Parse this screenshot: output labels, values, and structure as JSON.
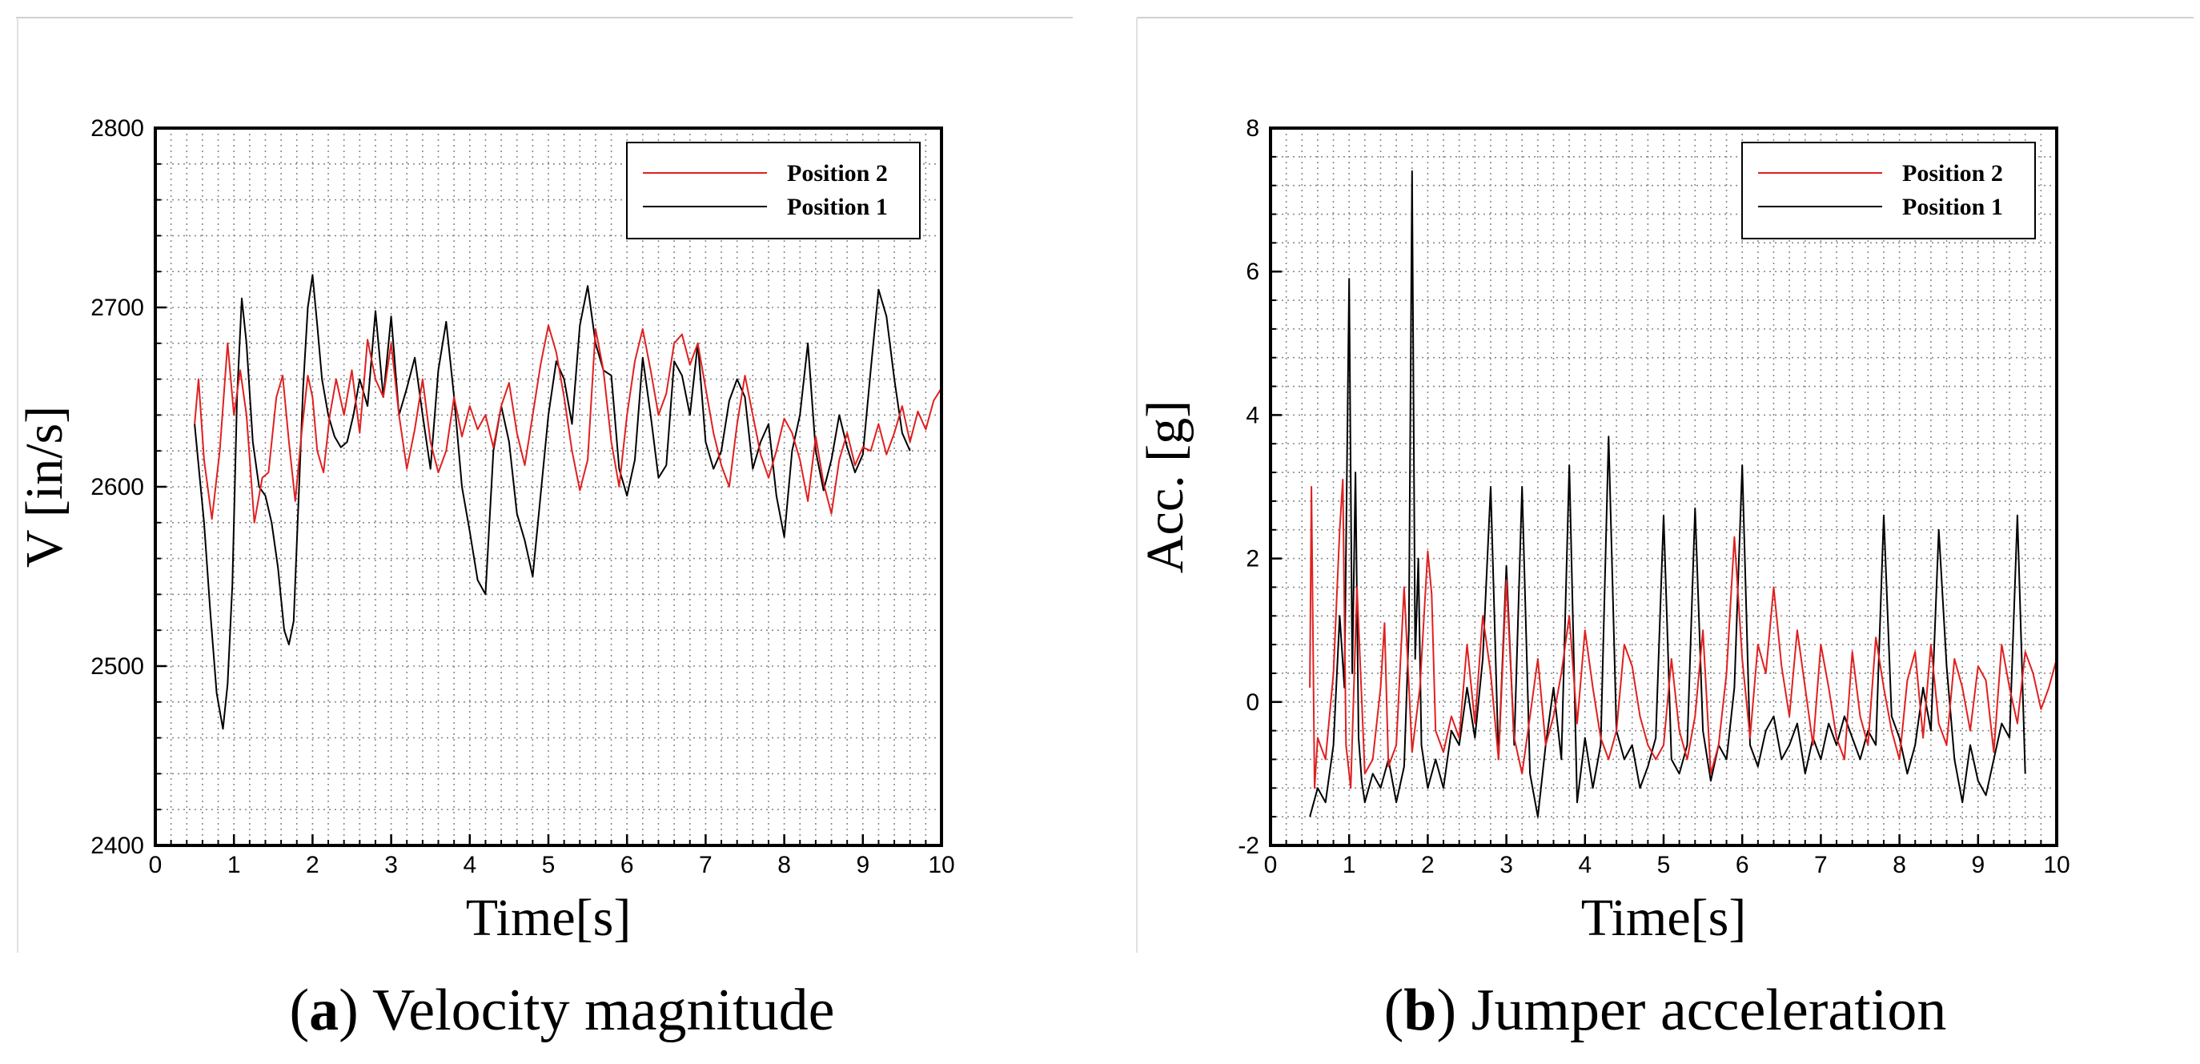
{
  "chart_data": [
    {
      "type": "line",
      "caption_letter": "a",
      "caption_text": "Velocity magnitude",
      "xlabel": "Time[s]",
      "ylabel": "V [in/s]",
      "xlim": [
        0,
        10
      ],
      "ylim": [
        2400,
        2800
      ],
      "xticks": [
        0,
        1,
        2,
        3,
        4,
        5,
        6,
        7,
        8,
        9,
        10
      ],
      "yticks": [
        2400,
        2500,
        2600,
        2700,
        2800
      ],
      "grid": true,
      "legend_position": "top-right",
      "series": [
        {
          "name": "Position 2",
          "color": "#e02020",
          "x": [
            0.5,
            0.55,
            0.62,
            0.72,
            0.82,
            0.92,
            1.0,
            1.08,
            1.16,
            1.26,
            1.36,
            1.44,
            1.54,
            1.62,
            1.7,
            1.78,
            1.86,
            1.94,
            2.0,
            2.06,
            2.14,
            2.22,
            2.3,
            2.4,
            2.5,
            2.6,
            2.7,
            2.8,
            2.9,
            3.0,
            3.1,
            3.2,
            3.3,
            3.4,
            3.5,
            3.6,
            3.7,
            3.8,
            3.9,
            4.0,
            4.1,
            4.2,
            4.3,
            4.4,
            4.5,
            4.6,
            4.7,
            4.8,
            4.9,
            5.0,
            5.1,
            5.2,
            5.3,
            5.4,
            5.5,
            5.6,
            5.7,
            5.8,
            5.9,
            6.0,
            6.1,
            6.2,
            6.3,
            6.4,
            6.5,
            6.6,
            6.7,
            6.8,
            6.9,
            7.0,
            7.1,
            7.2,
            7.3,
            7.4,
            7.5,
            7.6,
            7.7,
            7.8,
            7.9,
            8.0,
            8.1,
            8.2,
            8.3,
            8.4,
            8.5,
            8.6,
            8.7,
            8.8,
            8.9,
            9.0,
            9.1,
            9.2,
            9.3,
            9.4,
            9.5,
            9.6,
            9.7,
            9.8,
            9.9,
            10.0
          ],
          "values": [
            2635,
            2660,
            2615,
            2582,
            2620,
            2680,
            2640,
            2665,
            2640,
            2580,
            2605,
            2608,
            2650,
            2662,
            2625,
            2592,
            2630,
            2662,
            2650,
            2620,
            2608,
            2640,
            2660,
            2640,
            2665,
            2630,
            2682,
            2660,
            2650,
            2680,
            2640,
            2610,
            2632,
            2660,
            2625,
            2608,
            2620,
            2650,
            2628,
            2645,
            2632,
            2640,
            2622,
            2645,
            2658,
            2630,
            2612,
            2640,
            2668,
            2690,
            2675,
            2650,
            2620,
            2598,
            2615,
            2688,
            2665,
            2625,
            2600,
            2640,
            2670,
            2688,
            2665,
            2640,
            2652,
            2680,
            2685,
            2668,
            2680,
            2655,
            2630,
            2612,
            2600,
            2635,
            2662,
            2640,
            2618,
            2605,
            2620,
            2638,
            2630,
            2615,
            2592,
            2628,
            2602,
            2585,
            2615,
            2630,
            2612,
            2622,
            2620,
            2635,
            2618,
            2630,
            2645,
            2625,
            2642,
            2632,
            2648,
            2655
          ]
        },
        {
          "name": "Position 1",
          "color": "#000000",
          "x": [
            0.5,
            0.55,
            0.62,
            0.7,
            0.78,
            0.86,
            0.92,
            0.98,
            1.04,
            1.1,
            1.16,
            1.24,
            1.32,
            1.4,
            1.48,
            1.56,
            1.64,
            1.7,
            1.76,
            1.82,
            1.88,
            1.94,
            2.0,
            2.06,
            2.12,
            2.2,
            2.28,
            2.36,
            2.44,
            2.52,
            2.6,
            2.7,
            2.8,
            2.9,
            3.0,
            3.1,
            3.2,
            3.3,
            3.4,
            3.5,
            3.6,
            3.7,
            3.8,
            3.9,
            4.0,
            4.1,
            4.2,
            4.3,
            4.4,
            4.5,
            4.6,
            4.7,
            4.8,
            4.9,
            5.0,
            5.1,
            5.2,
            5.3,
            5.4,
            5.5,
            5.6,
            5.7,
            5.8,
            5.9,
            6.0,
            6.1,
            6.2,
            6.3,
            6.4,
            6.5,
            6.6,
            6.7,
            6.8,
            6.9,
            7.0,
            7.1,
            7.2,
            7.3,
            7.4,
            7.5,
            7.6,
            7.7,
            7.8,
            7.9,
            8.0,
            8.1,
            8.2,
            8.3,
            8.4,
            8.5,
            8.6,
            8.7,
            8.8,
            8.9,
            9.0,
            9.1,
            9.2,
            9.3,
            9.4,
            9.5,
            9.6
          ],
          "values": [
            2635,
            2612,
            2580,
            2530,
            2485,
            2465,
            2490,
            2545,
            2650,
            2705,
            2680,
            2625,
            2600,
            2595,
            2580,
            2555,
            2520,
            2512,
            2525,
            2590,
            2655,
            2700,
            2718,
            2690,
            2660,
            2640,
            2628,
            2622,
            2625,
            2640,
            2660,
            2645,
            2698,
            2650,
            2695,
            2640,
            2655,
            2672,
            2640,
            2610,
            2665,
            2692,
            2650,
            2600,
            2575,
            2548,
            2540,
            2620,
            2645,
            2625,
            2585,
            2570,
            2550,
            2595,
            2640,
            2670,
            2660,
            2635,
            2690,
            2712,
            2680,
            2665,
            2662,
            2610,
            2595,
            2615,
            2672,
            2640,
            2605,
            2612,
            2670,
            2662,
            2640,
            2680,
            2625,
            2610,
            2620,
            2648,
            2660,
            2650,
            2610,
            2625,
            2635,
            2595,
            2572,
            2620,
            2640,
            2680,
            2620,
            2598,
            2615,
            2640,
            2622,
            2608,
            2618,
            2665,
            2710,
            2695,
            2660,
            2630,
            2620
          ]
        }
      ]
    },
    {
      "type": "line",
      "caption_letter": "b",
      "caption_text": "Jumper acceleration",
      "xlabel": "Time[s]",
      "ylabel": "Acc. [g]",
      "xlim": [
        0,
        10
      ],
      "ylim": [
        -2,
        8
      ],
      "xticks": [
        0,
        1,
        2,
        3,
        4,
        5,
        6,
        7,
        8,
        9,
        10
      ],
      "yticks": [
        -2,
        0,
        2,
        4,
        6,
        8
      ],
      "grid": true,
      "legend_position": "top-right",
      "series": [
        {
          "name": "Position 2",
          "color": "#e02020",
          "x": [
            0.5,
            0.52,
            0.56,
            0.6,
            0.7,
            0.8,
            0.88,
            0.92,
            0.96,
            1.02,
            1.1,
            1.2,
            1.3,
            1.4,
            1.45,
            1.5,
            1.6,
            1.7,
            1.8,
            1.9,
            2.0,
            2.05,
            2.1,
            2.2,
            2.3,
            2.4,
            2.5,
            2.6,
            2.7,
            2.8,
            2.9,
            3.0,
            3.1,
            3.2,
            3.3,
            3.4,
            3.5,
            3.6,
            3.7,
            3.8,
            3.9,
            4.0,
            4.1,
            4.2,
            4.3,
            4.4,
            4.5,
            4.6,
            4.7,
            4.8,
            4.9,
            5.0,
            5.1,
            5.2,
            5.3,
            5.4,
            5.5,
            5.6,
            5.7,
            5.8,
            5.9,
            6.0,
            6.1,
            6.2,
            6.3,
            6.4,
            6.5,
            6.6,
            6.7,
            6.8,
            6.9,
            7.0,
            7.1,
            7.2,
            7.3,
            7.4,
            7.5,
            7.6,
            7.7,
            7.8,
            7.9,
            8.0,
            8.1,
            8.2,
            8.3,
            8.4,
            8.5,
            8.6,
            8.7,
            8.8,
            8.9,
            9.0,
            9.1,
            9.2,
            9.3,
            9.4,
            9.5,
            9.6,
            9.7,
            9.8,
            9.9,
            10.0
          ],
          "values": [
            0.2,
            3.0,
            -1.2,
            -0.5,
            -0.8,
            0.4,
            2.4,
            3.1,
            -0.6,
            -1.2,
            1.6,
            -1.0,
            -0.8,
            0.2,
            1.1,
            -0.9,
            -0.6,
            1.6,
            -0.7,
            0.2,
            2.1,
            1.5,
            -0.4,
            -0.7,
            -0.2,
            -0.5,
            0.8,
            -0.3,
            1.2,
            0.4,
            -0.8,
            1.7,
            -0.5,
            -1.0,
            -0.2,
            0.6,
            -0.6,
            -0.2,
            0.4,
            1.2,
            -0.3,
            1.0,
            0.2,
            -0.5,
            -0.8,
            -0.4,
            0.8,
            0.5,
            -0.2,
            -0.6,
            -0.8,
            -0.6,
            0.6,
            -0.4,
            -0.8,
            -0.2,
            1.0,
            -1.0,
            -0.6,
            0.4,
            2.3,
            0.6,
            -0.5,
            0.8,
            0.4,
            1.6,
            0.5,
            -0.2,
            1.0,
            0.2,
            -0.6,
            0.8,
            0.2,
            -0.5,
            -0.8,
            0.7,
            -0.2,
            -0.6,
            0.9,
            0.2,
            -0.4,
            -0.8,
            0.3,
            0.7,
            -0.5,
            0.8,
            -0.3,
            -0.6,
            0.6,
            0.2,
            -0.4,
            0.5,
            0.3,
            -0.7,
            0.8,
            0.2,
            -0.3,
            0.7,
            0.4,
            -0.1,
            0.2,
            0.6
          ]
        },
        {
          "name": "Position 1",
          "color": "#000000",
          "x": [
            0.5,
            0.6,
            0.7,
            0.8,
            0.88,
            0.94,
            1.0,
            1.04,
            1.08,
            1.12,
            1.16,
            1.2,
            1.3,
            1.4,
            1.5,
            1.6,
            1.7,
            1.76,
            1.8,
            1.84,
            1.88,
            1.92,
            2.0,
            2.1,
            2.2,
            2.3,
            2.4,
            2.5,
            2.6,
            2.7,
            2.8,
            2.9,
            3.0,
            3.1,
            3.2,
            3.3,
            3.4,
            3.5,
            3.6,
            3.7,
            3.8,
            3.9,
            4.0,
            4.1,
            4.2,
            4.3,
            4.4,
            4.5,
            4.6,
            4.7,
            4.8,
            4.9,
            5.0,
            5.1,
            5.2,
            5.3,
            5.4,
            5.5,
            5.6,
            5.7,
            5.8,
            5.9,
            6.0,
            6.1,
            6.2,
            6.3,
            6.4,
            6.5,
            6.6,
            6.7,
            6.8,
            6.9,
            7.0,
            7.1,
            7.2,
            7.3,
            7.4,
            7.5,
            7.6,
            7.7,
            7.8,
            7.9,
            8.0,
            8.1,
            8.2,
            8.3,
            8.4,
            8.5,
            8.6,
            8.7,
            8.8,
            8.9,
            9.0,
            9.1,
            9.2,
            9.3,
            9.4,
            9.5,
            9.6
          ],
          "values": [
            -1.6,
            -1.2,
            -1.4,
            -0.6,
            1.2,
            0.2,
            5.9,
            0.4,
            3.2,
            -0.5,
            -1.1,
            -1.4,
            -1.0,
            -1.2,
            -0.8,
            -1.4,
            -0.9,
            1.0,
            7.4,
            0.6,
            2.0,
            -0.6,
            -1.2,
            -0.8,
            -1.2,
            -0.4,
            -0.6,
            0.2,
            -0.5,
            0.6,
            3.0,
            -0.8,
            1.9,
            -0.6,
            3.0,
            -1.0,
            -1.6,
            -0.6,
            0.2,
            -0.8,
            3.3,
            -1.4,
            -0.5,
            -1.2,
            -0.6,
            3.7,
            -0.4,
            -0.8,
            -0.6,
            -1.2,
            -0.9,
            -0.5,
            2.6,
            -0.8,
            -1.0,
            -0.6,
            2.7,
            -0.4,
            -1.1,
            -0.6,
            -0.8,
            0.2,
            3.3,
            -0.6,
            -0.9,
            -0.4,
            -0.2,
            -0.8,
            -0.6,
            -0.3,
            -1.0,
            -0.5,
            -0.8,
            -0.3,
            -0.6,
            -0.2,
            -0.5,
            -0.8,
            -0.4,
            -0.6,
            2.6,
            -0.2,
            -0.5,
            -1.0,
            -0.6,
            0.2,
            -0.4,
            2.4,
            0.5,
            -0.8,
            -1.4,
            -0.6,
            -1.1,
            -1.3,
            -0.8,
            -0.3,
            -0.5,
            2.6,
            -1.0
          ]
        }
      ]
    }
  ]
}
